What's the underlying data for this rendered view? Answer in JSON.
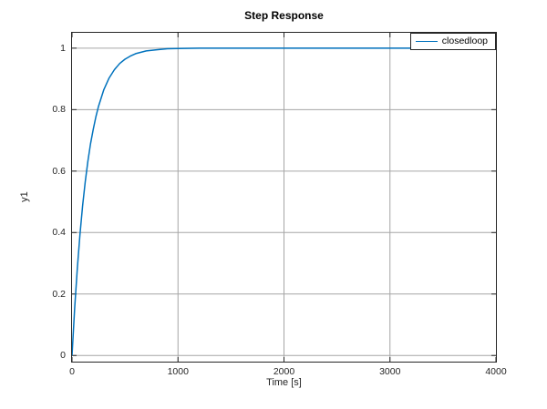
{
  "figure": {
    "background": "#ffffff"
  },
  "chart_data": {
    "type": "line",
    "title": "Step Response",
    "xlabel": "Time [s]",
    "ylabel": "y1",
    "xlim": [
      0,
      4000
    ],
    "ylim": [
      -0.02,
      1.05
    ],
    "xticks": [
      0,
      1000,
      2000,
      3000,
      4000
    ],
    "yticks": [
      0,
      0.2,
      0.4,
      0.6,
      0.8,
      1
    ],
    "xtick_labels": [
      "0",
      "1000",
      "2000",
      "3000",
      "4000"
    ],
    "ytick_labels": [
      "0",
      "0.2",
      "0.4",
      "0.6",
      "0.8",
      "1"
    ],
    "grid": true,
    "grid_color": "#a6a6a6",
    "axis_color": "#262626",
    "legend": {
      "position": "northeast",
      "entries": [
        {
          "label": "closedloop",
          "color": "#0072BD"
        }
      ]
    },
    "series": [
      {
        "name": "closedloop",
        "color": "#0072BD",
        "x": [
          0,
          25,
          50,
          75,
          100,
          125,
          150,
          175,
          200,
          225,
          250,
          300,
          350,
          400,
          450,
          500,
          550,
          600,
          700,
          800,
          900,
          1000,
          1200,
          1400,
          1700,
          2000,
          2500,
          3000,
          3500,
          4000
        ],
        "y": [
          0,
          0.154,
          0.283,
          0.393,
          0.487,
          0.565,
          0.632,
          0.689,
          0.736,
          0.777,
          0.811,
          0.865,
          0.903,
          0.93,
          0.95,
          0.964,
          0.974,
          0.982,
          0.991,
          0.995,
          0.998,
          0.999,
          1.0,
          1.0,
          1.0,
          1.0,
          1.0,
          1.0,
          1.0,
          1.0
        ]
      }
    ]
  }
}
